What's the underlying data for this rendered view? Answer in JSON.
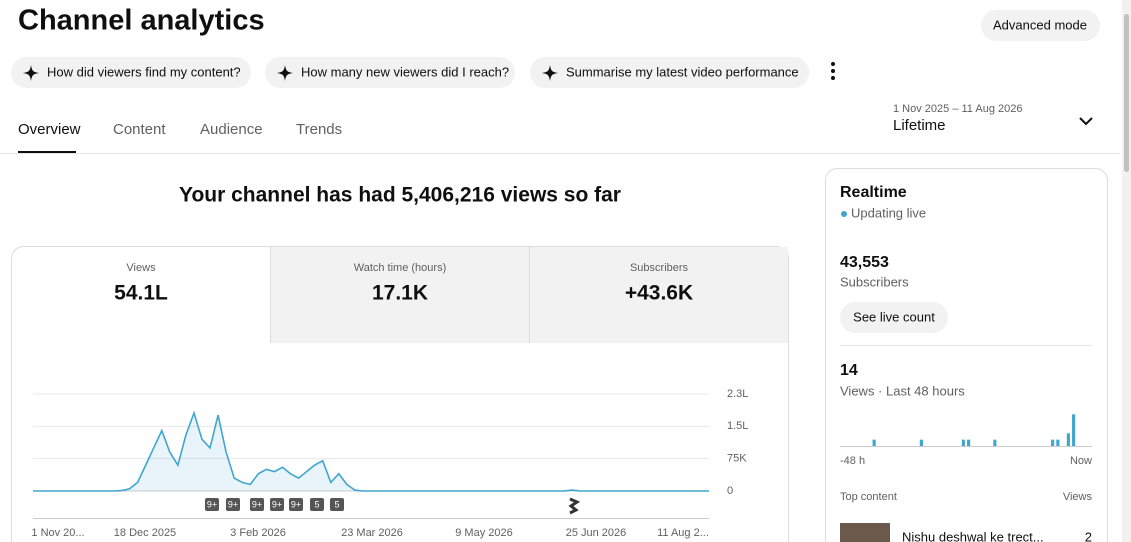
{
  "header": {
    "title": "Channel analytics",
    "advanced_mode": "Advanced mode"
  },
  "suggestions": [
    "How did viewers find my content?",
    "How many new viewers did I reach?",
    "Summarise my latest video performance"
  ],
  "tabs": [
    "Overview",
    "Content",
    "Audience",
    "Trends"
  ],
  "date_range": {
    "range": "1 Nov 2025 – 11 Aug 2026",
    "label": "Lifetime"
  },
  "headline": "Your channel has had 5,406,216 views so far",
  "metrics": [
    {
      "label": "Views",
      "value": "54.1L"
    },
    {
      "label": "Watch time (hours)",
      "value": "17.1K"
    },
    {
      "label": "Subscribers",
      "value": "+43.6K"
    }
  ],
  "chart": {
    "type": "line",
    "color": "#41a5cf",
    "values": [
      0,
      0,
      0,
      0,
      0,
      0,
      0,
      0,
      0,
      0,
      0,
      1000,
      5000,
      20000,
      60000,
      100000,
      140000,
      90000,
      60000,
      130000,
      181000,
      120000,
      100000,
      176000,
      90000,
      30000,
      20000,
      15000,
      40000,
      50000,
      45000,
      55000,
      40000,
      30000,
      45000,
      60000,
      70000,
      20000,
      40000,
      15000,
      2000,
      0,
      0,
      0,
      0,
      0,
      0,
      0,
      0,
      0,
      0,
      0,
      0,
      0,
      0,
      0,
      0,
      0,
      0,
      0,
      0,
      0,
      0,
      0,
      0,
      0,
      0,
      2000,
      0,
      0,
      0,
      0,
      0,
      0,
      0,
      0,
      0,
      0,
      0,
      0,
      0,
      0,
      0,
      0,
      0
    ],
    "ylim": [
      0,
      225000
    ],
    "yticks": [
      0,
      {
        "value": 75000,
        "label": "75K"
      },
      {
        "value": 150000,
        "label": "1.5L"
      },
      {
        "value": 225000,
        "label": "2.3L"
      }
    ],
    "x_labels": [
      "1 Nov 20...",
      "18 Dec 2025",
      "3 Feb 2026",
      "23 Mar 2026",
      "9 May 2026",
      "25 Jun 2026",
      "11 Aug 2..."
    ],
    "markers": [
      "9+",
      "9+",
      "9+",
      "9+",
      "9+",
      "5",
      "5"
    ]
  },
  "realtime": {
    "title": "Realtime",
    "status": "Updating live",
    "subscribers": "43,553",
    "subscribers_label": "Subscribers",
    "live_count_button": "See live count",
    "views": "14",
    "views_label": "Views · Last 48 hours",
    "chart": {
      "type": "bar",
      "color": "#41a5cf",
      "ylim": [
        0,
        6
      ],
      "values": [
        0,
        0,
        0,
        0,
        0,
        0,
        1,
        0,
        0,
        0,
        0,
        0,
        0,
        0,
        0,
        1,
        0,
        0,
        0,
        0,
        0,
        0,
        0,
        1,
        1,
        0,
        0,
        0,
        0,
        1,
        0,
        0,
        0,
        0,
        0,
        0,
        0,
        0,
        0,
        0,
        1,
        1,
        0,
        2,
        5,
        0,
        0,
        0
      ]
    },
    "x_start": "-48 h",
    "x_end": "Now",
    "top_content": "Top content",
    "views_header": "Views",
    "top_items": [
      {
        "title": "Nishu deshwal ke trect...",
        "views": "2"
      }
    ]
  }
}
